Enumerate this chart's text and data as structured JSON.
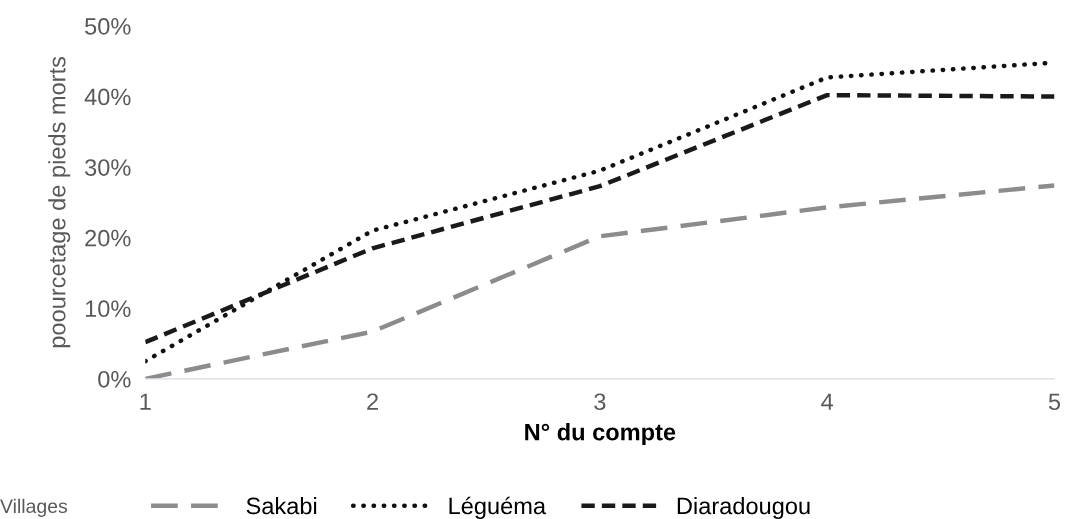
{
  "chart_data": {
    "type": "line",
    "xlabel": "N° du compte",
    "ylabel": "poourcetage de pieds morts",
    "legend_title": "Villages",
    "legend": "bottom",
    "grid": false,
    "categories": [
      "1",
      "2",
      "3",
      "4",
      "5"
    ],
    "ylim": [
      0,
      50
    ],
    "yticks": [
      {
        "value": 0,
        "label": "0%"
      },
      {
        "value": 10,
        "label": "10%"
      },
      {
        "value": 20,
        "label": "20%"
      },
      {
        "value": 30,
        "label": "30%"
      },
      {
        "value": 40,
        "label": "40%"
      },
      {
        "value": 50,
        "label": "50%"
      }
    ],
    "series": [
      {
        "name": "Sakabi",
        "color": "#8c8c8c",
        "line_style": "longdash",
        "values": [
          0,
          6.7,
          20.2,
          24.3,
          27.4
        ]
      },
      {
        "name": "Léguéma",
        "color": "#111111",
        "line_style": "dotted",
        "values": [
          2.5,
          21,
          29.5,
          42.7,
          44.8
        ]
      },
      {
        "name": "Diaradougou",
        "color": "#1a1a1a",
        "line_style": "dashed",
        "values": [
          5.2,
          18.5,
          27.3,
          40.2,
          40
        ]
      }
    ]
  }
}
